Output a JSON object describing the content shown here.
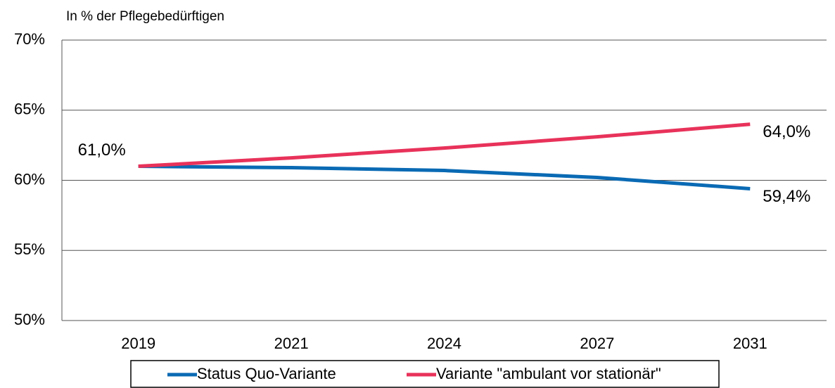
{
  "chart_data": {
    "type": "line",
    "y_axis_label": "In % der Pflegebedürftigen",
    "categories": [
      "2019",
      "2021",
      "2024",
      "2027",
      "2031"
    ],
    "series": [
      {
        "name": "Status Quo-Variante",
        "color": "#0a6ab4",
        "values": [
          61.0,
          60.9,
          60.7,
          60.2,
          59.4
        ],
        "value_labels": [
          null,
          null,
          null,
          null,
          "59,4%"
        ]
      },
      {
        "name": "Variante \"ambulant vor stationär\"",
        "color": "#e8325a",
        "values": [
          61.0,
          61.6,
          62.3,
          63.1,
          64.0
        ],
        "value_labels": [
          "61,0%",
          null,
          null,
          null,
          "64,0%"
        ]
      }
    ],
    "ylim": [
      50,
      70
    ],
    "yticks": [
      {
        "value": 50,
        "label": "50%"
      },
      {
        "value": 55,
        "label": "55%"
      },
      {
        "value": 60,
        "label": "60%"
      },
      {
        "value": 65,
        "label": "65%"
      },
      {
        "value": 70,
        "label": "70%"
      }
    ],
    "grid": true,
    "legend": "bottom"
  }
}
